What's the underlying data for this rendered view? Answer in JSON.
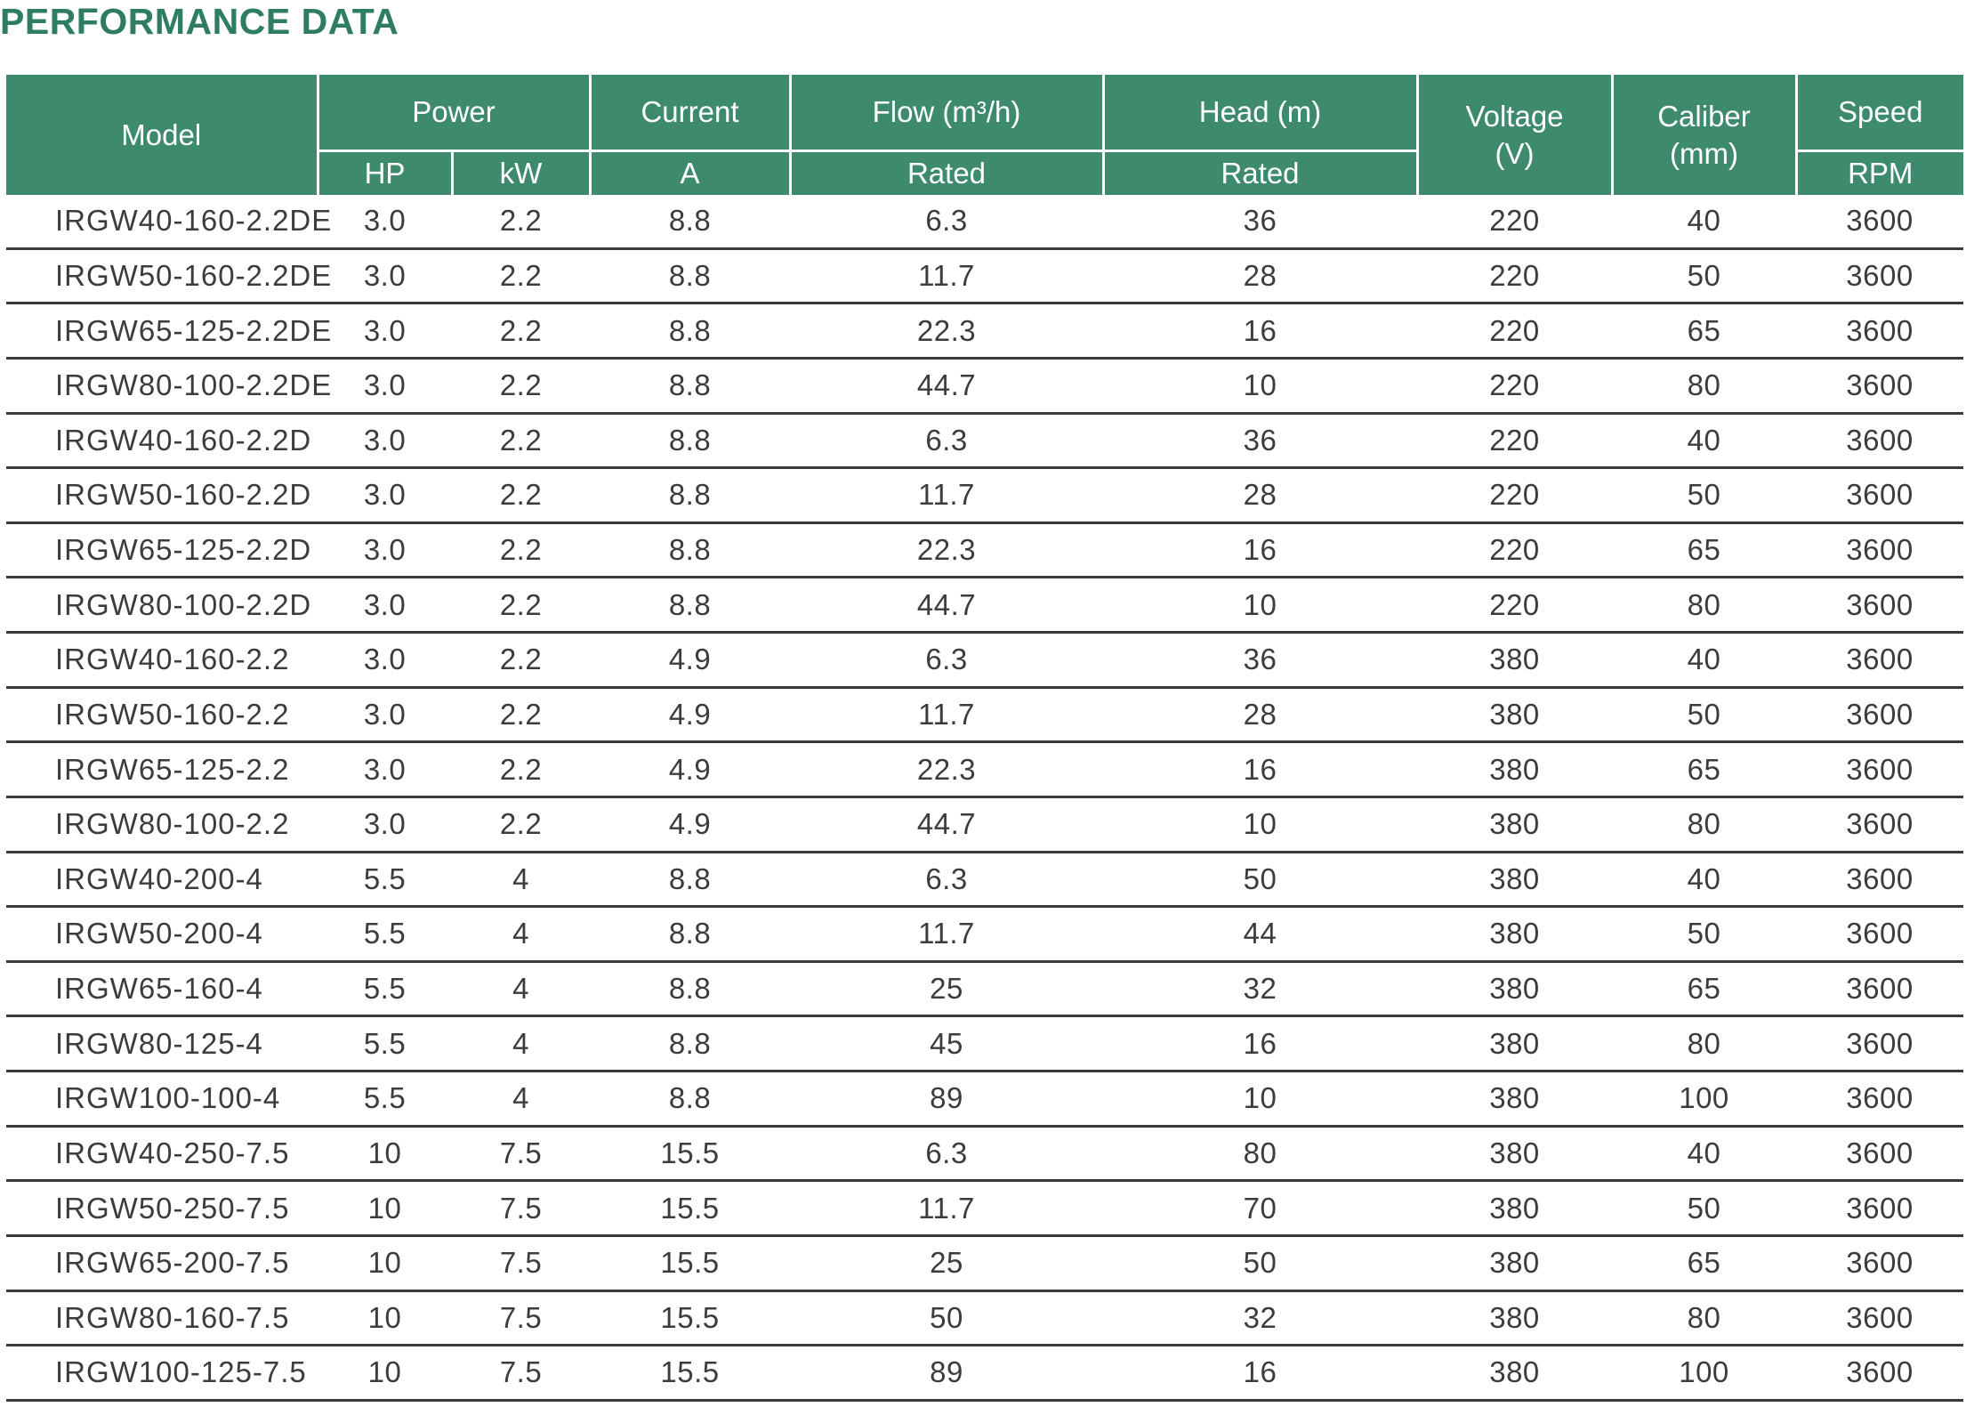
{
  "title": "PERFORMANCE DATA",
  "colors": {
    "header_green": "#3d8a6d",
    "title_green": "#2e7d62",
    "row_line": "#3a3a3a",
    "text_dark": "#3c3c3c",
    "table_bg": "#ffffff"
  },
  "table": {
    "header": {
      "model": "Model",
      "power": "Power",
      "hp": "HP",
      "kw": "kW",
      "current": "Current",
      "current_unit": "A",
      "flow": "Flow (m³/h)",
      "flow_sub": "Rated",
      "head": "Head (m)",
      "head_sub": "Rated",
      "voltage": "Voltage\n(V)",
      "caliber": "Caliber\n(mm)",
      "speed": "Speed",
      "speed_unit": "RPM"
    },
    "columns": [
      "Model",
      "Power HP",
      "Power kW",
      "Current A",
      "Flow (m³/h) Rated",
      "Head (m) Rated",
      "Voltage (V)",
      "Caliber (mm)",
      "Speed RPM"
    ],
    "rows": [
      [
        "IRGW40-160-2.2DE",
        "3.0",
        "2.2",
        "8.8",
        "6.3",
        "36",
        "220",
        "40",
        "3600"
      ],
      [
        "IRGW50-160-2.2DE",
        "3.0",
        "2.2",
        "8.8",
        "11.7",
        "28",
        "220",
        "50",
        "3600"
      ],
      [
        "IRGW65-125-2.2DE",
        "3.0",
        "2.2",
        "8.8",
        "22.3",
        "16",
        "220",
        "65",
        "3600"
      ],
      [
        "IRGW80-100-2.2DE",
        "3.0",
        "2.2",
        "8.8",
        "44.7",
        "10",
        "220",
        "80",
        "3600"
      ],
      [
        "IRGW40-160-2.2D",
        "3.0",
        "2.2",
        "8.8",
        "6.3",
        "36",
        "220",
        "40",
        "3600"
      ],
      [
        "IRGW50-160-2.2D",
        "3.0",
        "2.2",
        "8.8",
        "11.7",
        "28",
        "220",
        "50",
        "3600"
      ],
      [
        "IRGW65-125-2.2D",
        "3.0",
        "2.2",
        "8.8",
        "22.3",
        "16",
        "220",
        "65",
        "3600"
      ],
      [
        "IRGW80-100-2.2D",
        "3.0",
        "2.2",
        "8.8",
        "44.7",
        "10",
        "220",
        "80",
        "3600"
      ],
      [
        "IRGW40-160-2.2",
        "3.0",
        "2.2",
        "4.9",
        "6.3",
        "36",
        "380",
        "40",
        "3600"
      ],
      [
        "IRGW50-160-2.2",
        "3.0",
        "2.2",
        "4.9",
        "11.7",
        "28",
        "380",
        "50",
        "3600"
      ],
      [
        "IRGW65-125-2.2",
        "3.0",
        "2.2",
        "4.9",
        "22.3",
        "16",
        "380",
        "65",
        "3600"
      ],
      [
        "IRGW80-100-2.2",
        "3.0",
        "2.2",
        "4.9",
        "44.7",
        "10",
        "380",
        "80",
        "3600"
      ],
      [
        "IRGW40-200-4",
        "5.5",
        "4",
        "8.8",
        "6.3",
        "50",
        "380",
        "40",
        "3600"
      ],
      [
        "IRGW50-200-4",
        "5.5",
        "4",
        "8.8",
        "11.7",
        "44",
        "380",
        "50",
        "3600"
      ],
      [
        "IRGW65-160-4",
        "5.5",
        "4",
        "8.8",
        "25",
        "32",
        "380",
        "65",
        "3600"
      ],
      [
        "IRGW80-125-4",
        "5.5",
        "4",
        "8.8",
        "45",
        "16",
        "380",
        "80",
        "3600"
      ],
      [
        "IRGW100-100-4",
        "5.5",
        "4",
        "8.8",
        "89",
        "10",
        "380",
        "100",
        "3600"
      ],
      [
        "IRGW40-250-7.5",
        "10",
        "7.5",
        "15.5",
        "6.3",
        "80",
        "380",
        "40",
        "3600"
      ],
      [
        "IRGW50-250-7.5",
        "10",
        "7.5",
        "15.5",
        "11.7",
        "70",
        "380",
        "50",
        "3600"
      ],
      [
        "IRGW65-200-7.5",
        "10",
        "7.5",
        "15.5",
        "25",
        "50",
        "380",
        "65",
        "3600"
      ],
      [
        "IRGW80-160-7.5",
        "10",
        "7.5",
        "15.5",
        "50",
        "32",
        "380",
        "80",
        "3600"
      ],
      [
        "IRGW100-125-7.5",
        "10",
        "7.5",
        "15.5",
        "89",
        "16",
        "380",
        "100",
        "3600"
      ]
    ]
  }
}
